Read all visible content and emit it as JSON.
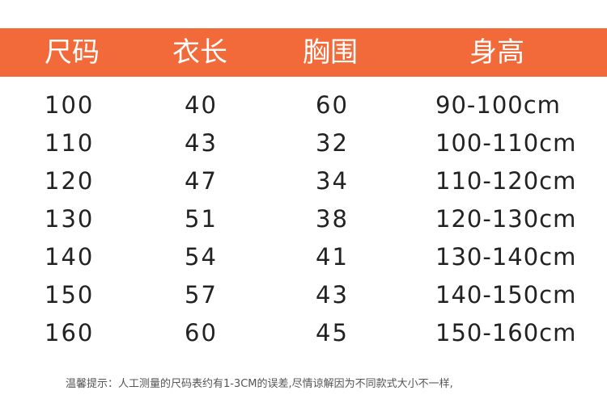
{
  "colors": {
    "header_bg": "#f26a3a"
  },
  "headers": [
    "尺码",
    "衣长",
    "胸围",
    "身高"
  ],
  "rows": [
    [
      "100",
      "40",
      "60",
      "90-100cm"
    ],
    [
      "110",
      "43",
      "32",
      "100-110cm"
    ],
    [
      "120",
      "47",
      "34",
      "110-120cm"
    ],
    [
      "130",
      "51",
      "38",
      "120-130cm"
    ],
    [
      "140",
      "54",
      "41",
      "130-140cm"
    ],
    [
      "150",
      "57",
      "43",
      "140-150cm"
    ],
    [
      "160",
      "60",
      "45",
      "150-160cm"
    ]
  ],
  "note": "温馨提示：人工测量的尺码表约有1-3CM的误差,尽情谅解因为不同款式大小不一样,"
}
